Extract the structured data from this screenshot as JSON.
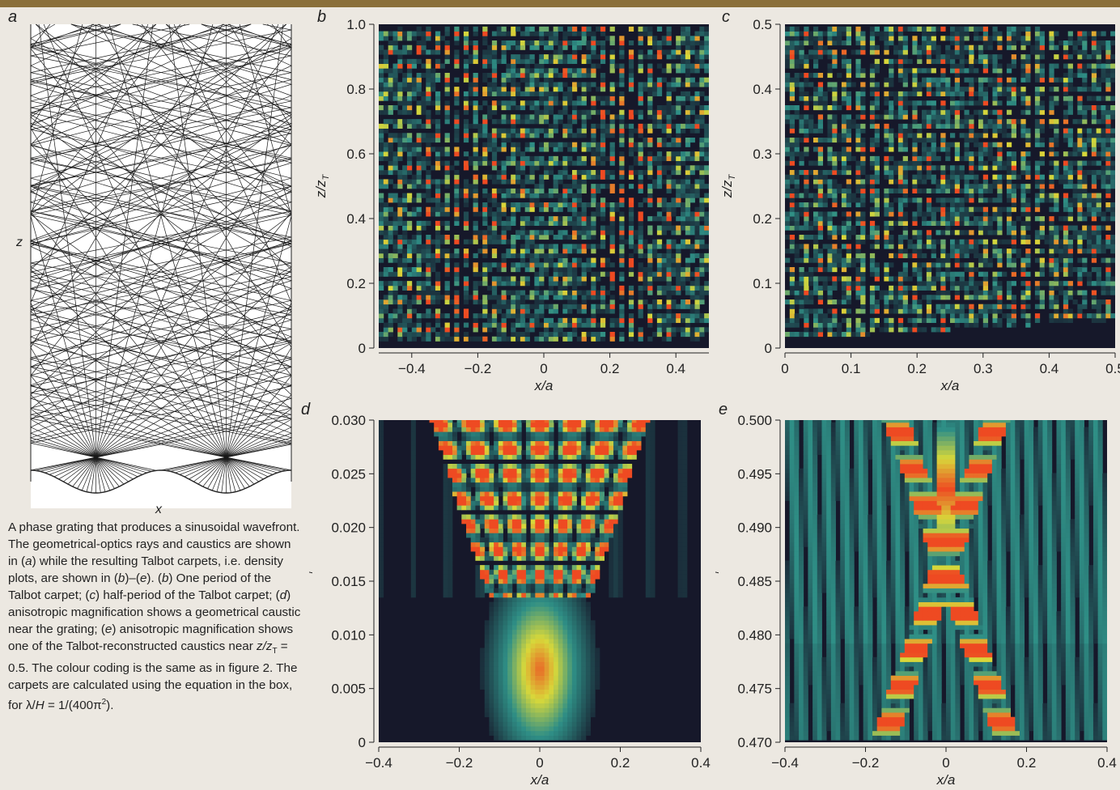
{
  "panel_letters": {
    "a": "a",
    "b": "b",
    "c": "c",
    "d": "d",
    "e": "e"
  },
  "panel_a": {
    "xlabel": "x",
    "ylabel": "z"
  },
  "caption": {
    "text_1": "A phase grating that produces a sinusoidal wavefront. The geometrical-optics rays and caustics are shown in (",
    "a": "a",
    "text_2": ") while the resulting Talbot carpets, i.e. density plots, are shown in (",
    "b": "b",
    "text_3": ")–(",
    "e": "e",
    "text_4": "). (",
    "b2": "b",
    "text_5": ") One period of the Talbot carpet; (",
    "c": "c",
    "text_6": ") half-period of the Talbot carpet; (",
    "d": "d",
    "text_7": ") anisotropic magnification shows a geometrical caustic near the grating; (",
    "e2": "e",
    "text_8": ") anisotropic magnification shows one of the Talbot-reconstructed caustics near ",
    "z_over_zt": "z/z",
    "sub_t": "T",
    "text_9": " = 0.5. The colour coding is the same as in figure 2. The carpets are calculated using the equation in the box, for λ/",
    "h": "H",
    "text_10": " = 1/(400π",
    "sup2": "2",
    "text_11": ")."
  },
  "chart_data": [
    {
      "id": "b",
      "type": "heatmap",
      "xlabel": "x/a",
      "ylabel": "z/z_T",
      "xlim": [
        -0.5,
        0.5
      ],
      "ylim": [
        0,
        1.0
      ],
      "xticks": [
        "-0.4",
        "-0.2",
        "0",
        "0.2",
        "0.4"
      ],
      "xtick_values": [
        -0.4,
        -0.2,
        0,
        0.2,
        0.4
      ],
      "yticks": [
        "0",
        "0.2",
        "0.4",
        "0.6",
        "0.8",
        "1.0"
      ],
      "ytick_values": [
        0,
        0.2,
        0.4,
        0.6,
        0.8,
        1.0
      ]
    },
    {
      "id": "c",
      "type": "heatmap",
      "xlabel": "x/a",
      "ylabel": "z/z_T",
      "xlim": [
        0,
        0.5
      ],
      "ylim": [
        0,
        0.5
      ],
      "xticks": [
        "0",
        "0.1",
        "0.2",
        "0.3",
        "0.4",
        "0.5"
      ],
      "xtick_values": [
        0,
        0.1,
        0.2,
        0.3,
        0.4,
        0.5
      ],
      "yticks": [
        "0",
        "0.1",
        "0.2",
        "0.3",
        "0.4",
        "0.5"
      ],
      "ytick_values": [
        0,
        0.1,
        0.2,
        0.3,
        0.4,
        0.5
      ]
    },
    {
      "id": "d",
      "type": "heatmap",
      "xlabel": "x/a",
      "ylabel": "z/z_T",
      "xlim": [
        -0.4,
        0.4
      ],
      "ylim": [
        0,
        0.03
      ],
      "xticks": [
        "-0.4",
        "-0.2",
        "0",
        "0.2",
        "0.4"
      ],
      "xtick_values": [
        -0.4,
        -0.2,
        0,
        0.2,
        0.4
      ],
      "yticks": [
        "0",
        "0.005",
        "0.010",
        "0.015",
        "0.020",
        "0.025",
        "0.030"
      ],
      "ytick_values": [
        0,
        0.005,
        0.01,
        0.015,
        0.02,
        0.025,
        0.03
      ]
    },
    {
      "id": "e",
      "type": "heatmap",
      "xlabel": "x/a",
      "ylabel": "z/z_T",
      "xlim": [
        -0.4,
        0.4
      ],
      "ylim": [
        0.47,
        0.5
      ],
      "xticks": [
        "-0.4",
        "-0.2",
        "0",
        "0.2",
        "0.4"
      ],
      "xtick_values": [
        -0.4,
        -0.2,
        0,
        0.2,
        0.4
      ],
      "yticks": [
        "0.470",
        "0.475",
        "0.480",
        "0.485",
        "0.490",
        "0.495",
        "0.500"
      ],
      "ytick_values": [
        0.47,
        0.475,
        0.48,
        0.485,
        0.49,
        0.495,
        0.5
      ]
    }
  ],
  "colors": {
    "dark": "#16182a",
    "teal": "#2f8f86",
    "yellow": "#d8d83a",
    "red": "#ee4a22",
    "axis": "#222222"
  }
}
